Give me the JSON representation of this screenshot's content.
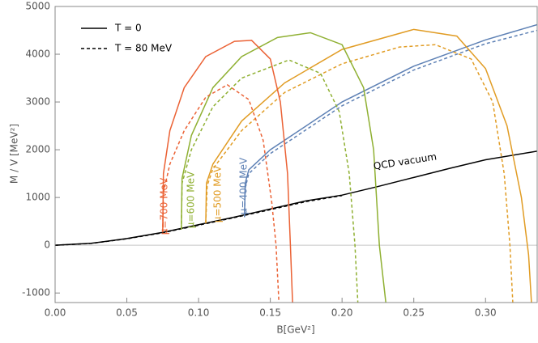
{
  "chart_data": {
    "type": "line",
    "xlabel": "B[GeV²]",
    "ylabel": "M / V [MeV²]",
    "xlim": [
      0,
      0.336
    ],
    "ylim": [
      -1200,
      5000
    ],
    "xticks": [
      {
        "value": 0,
        "label": "0.00"
      },
      {
        "value": 0.05,
        "label": "0.05"
      },
      {
        "value": 0.1,
        "label": "0.10"
      },
      {
        "value": 0.15,
        "label": "0.15"
      },
      {
        "value": 0.2,
        "label": "0.20"
      },
      {
        "value": 0.25,
        "label": "0.25"
      },
      {
        "value": 0.3,
        "label": "0.30"
      }
    ],
    "yticks": [
      -1000,
      0,
      1000,
      2000,
      3000,
      4000,
      5000
    ],
    "zero_line": true,
    "legend": [
      {
        "name": "T = 0",
        "dashed": false
      },
      {
        "name": "T = 80 MeV",
        "dashed": true
      }
    ],
    "legend_position": "upper-left",
    "series": [
      {
        "color": "#000000",
        "dashed": false,
        "x": [
          0,
          0.025,
          0.05,
          0.075,
          0.1,
          0.125,
          0.15,
          0.175,
          0.2,
          0.225,
          0.25,
          0.275,
          0.3,
          0.336
        ],
        "values": [
          0,
          40,
          140,
          270,
          430,
          590,
          760,
          930,
          1050,
          1230,
          1420,
          1610,
          1790,
          1970
        ]
      },
      {
        "color": "#000000",
        "dashed": true,
        "x": [
          0,
          0.025,
          0.05,
          0.075,
          0.1,
          0.125,
          0.15,
          0.175,
          0.2
        ],
        "values": [
          0,
          38,
          135,
          262,
          420,
          580,
          745,
          915,
          1040
        ]
      },
      {
        "color": "#5e81b5",
        "dashed": false,
        "x": [
          0.132,
          0.1325,
          0.135,
          0.15,
          0.2,
          0.25,
          0.3,
          0.336
        ],
        "values": [
          590,
          1300,
          1580,
          2000,
          3000,
          3750,
          4300,
          4620
        ]
      },
      {
        "color": "#5e81b5",
        "dashed": true,
        "x": [
          0.132,
          0.1325,
          0.135,
          0.15,
          0.2,
          0.25,
          0.3,
          0.336
        ],
        "values": [
          590,
          1200,
          1500,
          1920,
          2920,
          3670,
          4220,
          4500
        ]
      },
      {
        "color": "#e19c24",
        "dashed": false,
        "x": [
          0.105,
          0.1055,
          0.11,
          0.13,
          0.16,
          0.2,
          0.25,
          0.28,
          0.3,
          0.315,
          0.325,
          0.33,
          0.332
        ],
        "values": [
          460,
          1300,
          1700,
          2600,
          3400,
          4100,
          4520,
          4380,
          3700,
          2500,
          1000,
          -200,
          -1200
        ]
      },
      {
        "color": "#e19c24",
        "dashed": true,
        "x": [
          0.105,
          0.106,
          0.11,
          0.13,
          0.16,
          0.2,
          0.24,
          0.265,
          0.29,
          0.305,
          0.313,
          0.317,
          0.319
        ],
        "values": [
          460,
          1250,
          1600,
          2400,
          3200,
          3800,
          4150,
          4200,
          3900,
          3000,
          1500,
          0,
          -1200
        ]
      },
      {
        "color": "#8fb032",
        "dashed": false,
        "x": [
          0.088,
          0.0885,
          0.095,
          0.11,
          0.13,
          0.155,
          0.178,
          0.2,
          0.215,
          0.222,
          0.226,
          0.2305
        ],
        "values": [
          330,
          1400,
          2300,
          3300,
          3950,
          4350,
          4450,
          4200,
          3300,
          2000,
          0,
          -1200
        ]
      },
      {
        "color": "#8fb032",
        "dashed": true,
        "x": [
          0.088,
          0.0885,
          0.095,
          0.11,
          0.13,
          0.163,
          0.185,
          0.198,
          0.205,
          0.209,
          0.211
        ],
        "values": [
          330,
          1300,
          2000,
          2900,
          3500,
          3880,
          3600,
          2800,
          1500,
          0,
          -1200
        ]
      },
      {
        "color": "#eb6235",
        "dashed": false,
        "x": [
          0.075,
          0.0755,
          0.08,
          0.09,
          0.105,
          0.125,
          0.137,
          0.15,
          0.157,
          0.162,
          0.164,
          0.1655
        ],
        "values": [
          270,
          1500,
          2400,
          3300,
          3950,
          4270,
          4290,
          3900,
          3000,
          1500,
          0,
          -1200
        ]
      },
      {
        "color": "#eb6235",
        "dashed": true,
        "x": [
          0.075,
          0.0755,
          0.08,
          0.09,
          0.105,
          0.12,
          0.135,
          0.145,
          0.151,
          0.154,
          0.156
        ],
        "values": [
          270,
          1100,
          1700,
          2400,
          3100,
          3360,
          3050,
          2200,
          900,
          0,
          -1200
        ]
      }
    ],
    "annotations": [
      {
        "text": "QCD vacuum",
        "color": "#000000"
      },
      {
        "text": "μ=700 MeV",
        "color": "#eb6235"
      },
      {
        "text": "μ=600 MeV",
        "color": "#8fb032"
      },
      {
        "text": "μ=500 MeV",
        "color": "#e19c24"
      },
      {
        "text": "μ=400 MeV",
        "color": "#5e81b5"
      }
    ]
  }
}
